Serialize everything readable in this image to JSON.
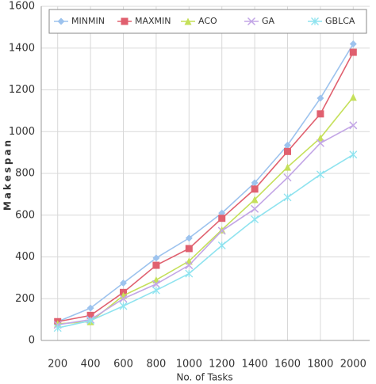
{
  "chart_data": {
    "type": "line",
    "x_label": "No. of Tasks",
    "y_label": "Makespan",
    "categories": [
      "200",
      "400",
      "600",
      "800",
      "1000",
      "1200",
      "1400",
      "1600",
      "1800",
      "2000"
    ],
    "series": [
      {
        "name": "MINMIN",
        "color": "#9dc3ee",
        "marker": "diamond",
        "values": [
          90,
          155,
          275,
          395,
          490,
          610,
          755,
          935,
          1160,
          1420
        ]
      },
      {
        "name": "MAXMIN",
        "color": "#e0606f",
        "marker": "square",
        "values": [
          90,
          120,
          230,
          360,
          440,
          585,
          725,
          905,
          1085,
          1380
        ]
      },
      {
        "name": "ACO",
        "color": "#c5e05a",
        "marker": "triangle",
        "values": [
          80,
          90,
          215,
          290,
          380,
          530,
          675,
          830,
          970,
          1165
        ]
      },
      {
        "name": "GA",
        "color": "#c3a6e6",
        "marker": "cross",
        "values": [
          75,
          100,
          200,
          270,
          360,
          525,
          630,
          780,
          945,
          1030
        ]
      },
      {
        "name": "GBLCA",
        "color": "#8fe3ef",
        "marker": "star",
        "values": [
          60,
          95,
          165,
          240,
          320,
          455,
          580,
          685,
          795,
          890
        ]
      }
    ],
    "ylim": [
      0,
      1600
    ],
    "yticks": [
      0,
      200,
      400,
      600,
      800,
      1000,
      1200,
      1400,
      1600
    ],
    "grid": true,
    "legend": "top"
  }
}
